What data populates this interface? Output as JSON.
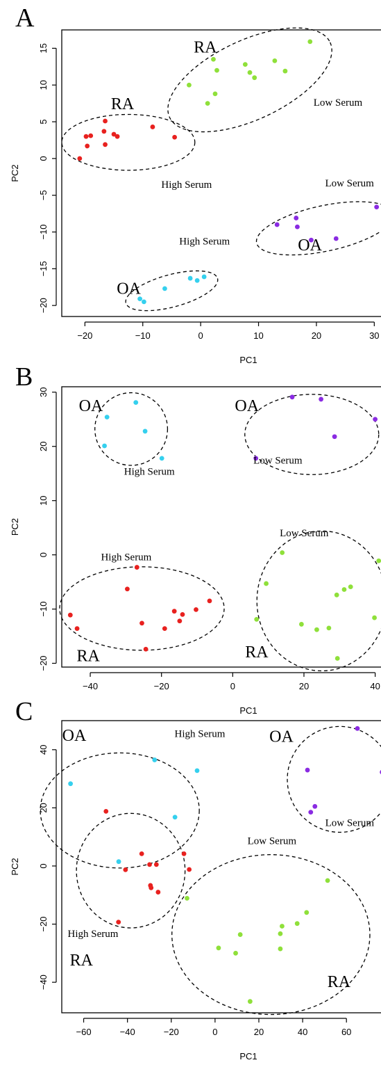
{
  "chart_data": [
    {
      "panel": "A",
      "type": "scatter",
      "xlabel": "PC1",
      "ylabel": "PC2",
      "xlim": [
        -24,
        32
      ],
      "ylim": [
        -21.5,
        17.5
      ],
      "xticks": [
        -20,
        -10,
        0,
        10,
        20,
        30
      ],
      "yticks": [
        -20,
        -15,
        -10,
        -5,
        0,
        5,
        10,
        15
      ],
      "series": [
        {
          "group": "RA",
          "serum": "Low Serum",
          "color": "#8fe03a",
          "points": [
            [
              -2,
              10
            ],
            [
              2.2,
              13.5
            ],
            [
              2.8,
              12
            ],
            [
              1.2,
              7.5
            ],
            [
              2.5,
              8.8
            ],
            [
              7.7,
              12.8
            ],
            [
              8.5,
              11.7
            ],
            [
              9.3,
              11
            ],
            [
              12.8,
              13.3
            ],
            [
              14.6,
              11.9
            ],
            [
              18.9,
              15.9
            ]
          ]
        },
        {
          "group": "RA",
          "serum": "High Serum",
          "color": "#e8211f",
          "points": [
            [
              -20.9,
              0
            ],
            [
              -19.8,
              3
            ],
            [
              -19,
              3.1
            ],
            [
              -16.5,
              5.1
            ],
            [
              -16.7,
              3.7
            ],
            [
              -15,
              3.3
            ],
            [
              -14.4,
              3
            ],
            [
              -8.3,
              4.3
            ],
            [
              -4.5,
              2.9
            ],
            [
              -19.6,
              1.7
            ],
            [
              -16.5,
              1.9
            ]
          ]
        },
        {
          "group": "OA",
          "serum": "Low Serum",
          "color": "#8a2be2",
          "points": [
            [
              13.2,
              -9
            ],
            [
              16.5,
              -8.1
            ],
            [
              16.7,
              -9.3
            ],
            [
              19.1,
              -11.1
            ],
            [
              23.4,
              -10.9
            ],
            [
              30.4,
              -6.6
            ]
          ]
        },
        {
          "group": "OA",
          "serum": "High Serum",
          "color": "#35d0ee",
          "points": [
            [
              -10.5,
              -19.1
            ],
            [
              -9.8,
              -19.5
            ],
            [
              -6.2,
              -17.7
            ],
            [
              -1.8,
              -16.3
            ],
            [
              -0.6,
              -16.6
            ],
            [
              0.6,
              -16.1
            ]
          ]
        }
      ],
      "annotations": [
        {
          "text": "RA",
          "kind": "group",
          "x": -1.2,
          "y": 14.4
        },
        {
          "text": "Low Serum",
          "kind": "serum",
          "x": 19.5,
          "y": 7.2
        },
        {
          "text": "RA",
          "kind": "group",
          "x": -15.5,
          "y": 6.7
        },
        {
          "text": "High Serum",
          "kind": "serum",
          "x": -6.8,
          "y": -4
        },
        {
          "text": "Low Serum",
          "kind": "serum",
          "x": 21.5,
          "y": -3.8
        },
        {
          "text": "OA",
          "kind": "group",
          "x": 16.8,
          "y": -12.5
        },
        {
          "text": "High Serum",
          "kind": "serum",
          "x": -3.7,
          "y": -11.7
        },
        {
          "text": "OA",
          "kind": "group",
          "x": -14.5,
          "y": -18.4
        }
      ],
      "ellipses": [
        {
          "cx": 8.5,
          "cy": 10.7,
          "rx": 15.3,
          "ry": 5.4,
          "angle": 25
        },
        {
          "cx": -12.5,
          "cy": 2.2,
          "rx": 11.5,
          "ry": 3.8,
          "angle": 0
        },
        {
          "cx": 21.5,
          "cy": -9.5,
          "rx": 12.1,
          "ry": 3.1,
          "angle": 12
        },
        {
          "cx": -5,
          "cy": -18,
          "rx": 8.2,
          "ry": 2.2,
          "angle": 15
        }
      ]
    },
    {
      "panel": "B",
      "type": "scatter",
      "xlabel": "PC1",
      "ylabel": "PC2",
      "xlim": [
        -48,
        43
      ],
      "ylim": [
        -20.7,
        31
      ],
      "xticks": [
        -40,
        -20,
        0,
        20,
        40
      ],
      "yticks": [
        -20,
        -10,
        0,
        10,
        20,
        30
      ],
      "series": [
        {
          "group": "OA",
          "serum": "High Serum",
          "color": "#35d0ee",
          "points": [
            [
              -35.3,
              25.4
            ],
            [
              -36,
              20.1
            ],
            [
              -27.2,
              28.1
            ],
            [
              -24.6,
              22.8
            ],
            [
              -19.9,
              17.8
            ]
          ]
        },
        {
          "group": "OA",
          "serum": "Low Serum",
          "color": "#8a2be2",
          "points": [
            [
              16.7,
              29.1
            ],
            [
              24.8,
              28.7
            ],
            [
              28.6,
              21.8
            ],
            [
              40,
              25
            ],
            [
              6.5,
              17.8
            ]
          ]
        },
        {
          "group": "RA",
          "serum": "High Serum",
          "color": "#e8211f",
          "points": [
            [
              -45.6,
              -11.1
            ],
            [
              -43.7,
              -13.6
            ],
            [
              -29.6,
              -6.3
            ],
            [
              -26.9,
              -2.3
            ],
            [
              -25.5,
              -12.6
            ],
            [
              -24.4,
              -17.4
            ],
            [
              -19.1,
              -13.6
            ],
            [
              -16.4,
              -10.4
            ],
            [
              -14.9,
              -12.2
            ],
            [
              -14.1,
              -11
            ],
            [
              -10.3,
              -10.1
            ],
            [
              -6.5,
              -8.5
            ]
          ]
        },
        {
          "group": "RA",
          "serum": "Low Serum",
          "color": "#8fe03a",
          "points": [
            [
              13.9,
              0.4
            ],
            [
              9.4,
              -5.3
            ],
            [
              6.7,
              -11.9
            ],
            [
              19.3,
              -12.8
            ],
            [
              23.6,
              -13.8
            ],
            [
              27,
              -13.5
            ],
            [
              29.2,
              -7.4
            ],
            [
              31.3,
              -6.4
            ],
            [
              33.1,
              -5.9
            ],
            [
              29.4,
              -19.1
            ],
            [
              39.8,
              -11.6
            ],
            [
              41,
              -1.1
            ]
          ]
        }
      ],
      "annotations": [
        {
          "text": "OA",
          "kind": "group",
          "x": -43.2,
          "y": 26.5
        },
        {
          "text": "High Serum",
          "kind": "serum",
          "x": -30.5,
          "y": 14.8
        },
        {
          "text": "OA",
          "kind": "group",
          "x": 0.6,
          "y": 26.5
        },
        {
          "text": "Low Serum",
          "kind": "serum",
          "x": 5.8,
          "y": 16.8
        },
        {
          "text": "Low Serum",
          "kind": "serum",
          "x": 13.2,
          "y": 3.4
        },
        {
          "text": "High Serum",
          "kind": "serum",
          "x": -37,
          "y": -1
        },
        {
          "text": "RA",
          "kind": "group",
          "x": -43.8,
          "y": -19.6
        },
        {
          "text": "RA",
          "kind": "group",
          "x": 3.5,
          "y": -18.9
        }
      ],
      "ellipses": [
        {
          "cx": -28.5,
          "cy": 23.2,
          "rx": 10.2,
          "ry": 6.7,
          "angle": 0
        },
        {
          "cx": 22.2,
          "cy": 22.2,
          "rx": 18.8,
          "ry": 7.4,
          "angle": 0
        },
        {
          "cx": -25.5,
          "cy": -9.9,
          "rx": 23.1,
          "ry": 7.7,
          "angle": 0
        },
        {
          "cx": 25,
          "cy": -8.5,
          "rx": 18.2,
          "ry": 12.9,
          "angle": 0
        }
      ]
    },
    {
      "panel": "C",
      "type": "scatter",
      "xlabel": "PC1",
      "ylabel": "PC2",
      "xlim": [
        -70,
        78
      ],
      "ylim": [
        -50.5,
        50
      ],
      "xticks": [
        -60,
        -40,
        -20,
        0,
        20,
        40,
        60
      ],
      "yticks": [
        -40,
        -20,
        0,
        20,
        40
      ],
      "series": [
        {
          "group": "OA",
          "serum": "High Serum",
          "color": "#35d0ee",
          "points": [
            [
              -66,
              28.3
            ],
            [
              -27.6,
              36.5
            ],
            [
              -8.2,
              32.8
            ],
            [
              -18.3,
              16.8
            ],
            [
              -44,
              1.5
            ]
          ]
        },
        {
          "group": "OA",
          "serum": "Low Serum",
          "color": "#8a2be2",
          "points": [
            [
              65,
              47.3
            ],
            [
              42.2,
              33
            ],
            [
              76.3,
              32.3
            ],
            [
              43.7,
              18.5
            ],
            [
              45.6,
              20.5
            ]
          ]
        },
        {
          "group": "RA",
          "serum": "High Serum",
          "color": "#e8211f",
          "points": [
            [
              -49.8,
              18.8
            ],
            [
              -33.5,
              4.2
            ],
            [
              -29.9,
              0.5
            ],
            [
              -26.8,
              0.5
            ],
            [
              -40.9,
              -1.3
            ],
            [
              -14.2,
              4.2
            ],
            [
              -11.8,
              -1.2
            ],
            [
              -29.5,
              -6.7
            ],
            [
              -29.2,
              -7.5
            ],
            [
              -26,
              -9
            ],
            [
              -44.1,
              -19.3
            ]
          ]
        },
        {
          "group": "RA",
          "serum": "Low Serum",
          "color": "#8fe03a",
          "points": [
            [
              -12.8,
              -11.1
            ],
            [
              51.4,
              -5
            ],
            [
              41.8,
              -16
            ],
            [
              37.5,
              -19.8
            ],
            [
              30.6,
              -20.7
            ],
            [
              29.8,
              -23.3
            ],
            [
              29.8,
              -28.5
            ],
            [
              11.5,
              -23.6
            ],
            [
              1.6,
              -28.2
            ],
            [
              9.4,
              -30
            ],
            [
              16,
              -46.6
            ]
          ]
        }
      ],
      "annotations": [
        {
          "text": "OA",
          "kind": "group",
          "x": -69.8,
          "y": 43.1
        },
        {
          "text": "High Serum",
          "kind": "serum",
          "x": -18.5,
          "y": 44.4
        },
        {
          "text": "OA",
          "kind": "group",
          "x": 24.8,
          "y": 42.7
        },
        {
          "text": "Low Serum",
          "kind": "serum",
          "x": 50.3,
          "y": 13.8
        },
        {
          "text": "Low Serum",
          "kind": "serum",
          "x": 14.8,
          "y": 7.5
        },
        {
          "text": "High Serum",
          "kind": "serum",
          "x": -67.3,
          "y": -24.4
        },
        {
          "text": "RA",
          "kind": "group",
          "x": -66.3,
          "y": -34.2
        },
        {
          "text": "RA",
          "kind": "group",
          "x": 51.3,
          "y": -41.7
        }
      ],
      "ellipses": [
        {
          "cx": -43.5,
          "cy": 19.1,
          "rx": 36.3,
          "ry": 19.8,
          "angle": 0
        },
        {
          "cx": -38.5,
          "cy": -1.6,
          "rx": 24.8,
          "ry": 19.7,
          "angle": 0
        },
        {
          "cx": 57,
          "cy": 29.8,
          "rx": 24,
          "ry": 18.2,
          "angle": 0
        },
        {
          "cx": 25.5,
          "cy": -23.6,
          "rx": 45.2,
          "ry": 27.5,
          "angle": 0
        }
      ]
    }
  ]
}
